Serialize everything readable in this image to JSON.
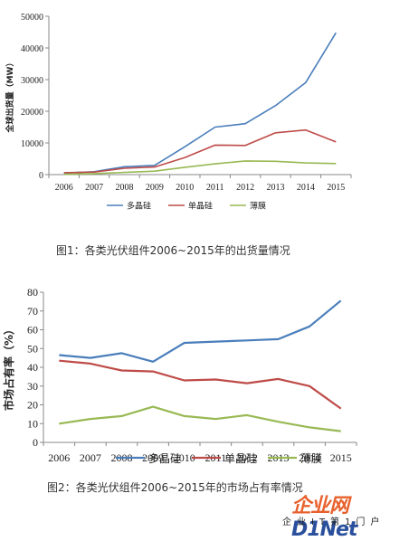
{
  "chart_data": [
    {
      "type": "line",
      "title": "",
      "xlabel": "",
      "ylabel": "全球出货量（MW）",
      "ylim": [
        0,
        50000
      ],
      "yticks": [
        0,
        10000,
        20000,
        30000,
        40000,
        50000
      ],
      "grid": false,
      "legend": "bottom",
      "categories": [
        "2006",
        "2007",
        "2008",
        "2009",
        "2010",
        "2011",
        "2012",
        "2013",
        "2014",
        "2015"
      ],
      "series": [
        {
          "name": "多晶硅",
          "color": "#4a7ebb",
          "values": [
            500,
            900,
            2500,
            2900,
            8800,
            15000,
            16100,
            21800,
            29100,
            44800
          ]
        },
        {
          "name": "单晶硅",
          "color": "#be4b48",
          "values": [
            600,
            800,
            2000,
            2400,
            5400,
            9300,
            9200,
            13200,
            14100,
            10300
          ]
        },
        {
          "name": "薄膜",
          "color": "#98b954",
          "values": [
            100,
            300,
            700,
            1100,
            2300,
            3400,
            4300,
            4200,
            3700,
            3500
          ]
        }
      ]
    },
    {
      "type": "line",
      "title": "",
      "xlabel": "",
      "ylabel": "市场占有率（%）",
      "ylim": [
        0,
        80
      ],
      "yticks": [
        0,
        10,
        20,
        30,
        40,
        50,
        60,
        70,
        80
      ],
      "grid": false,
      "legend": "bottom",
      "categories": [
        "2006",
        "2007",
        "2008",
        "2009",
        "2010",
        "2011",
        "2012",
        "2013",
        "2014",
        "2015"
      ],
      "series": [
        {
          "name": "多晶硅",
          "color": "#4a7ebb",
          "values": [
            46.5,
            45,
            47.5,
            43,
            53,
            53.7,
            54.3,
            55,
            61.8,
            75.5
          ]
        },
        {
          "name": "单晶硅",
          "color": "#be4b48",
          "values": [
            43.5,
            42,
            38.3,
            37.8,
            33,
            33.5,
            31.5,
            33.8,
            30,
            18
          ]
        },
        {
          "name": "薄膜",
          "color": "#98b954",
          "values": [
            10,
            12.5,
            14,
            19,
            14,
            12.5,
            14.5,
            11,
            8,
            6
          ]
        }
      ]
    }
  ],
  "captions": {
    "fig1": "图1：各类光伏组件2006~2015年的出货量情况",
    "fig2": "图2：各类光伏组件2006~2015年的市场占有率情况"
  },
  "watermark": {
    "main_a": "企业网",
    "main_b": "D1Net",
    "sub": "企业IT第1门户"
  }
}
